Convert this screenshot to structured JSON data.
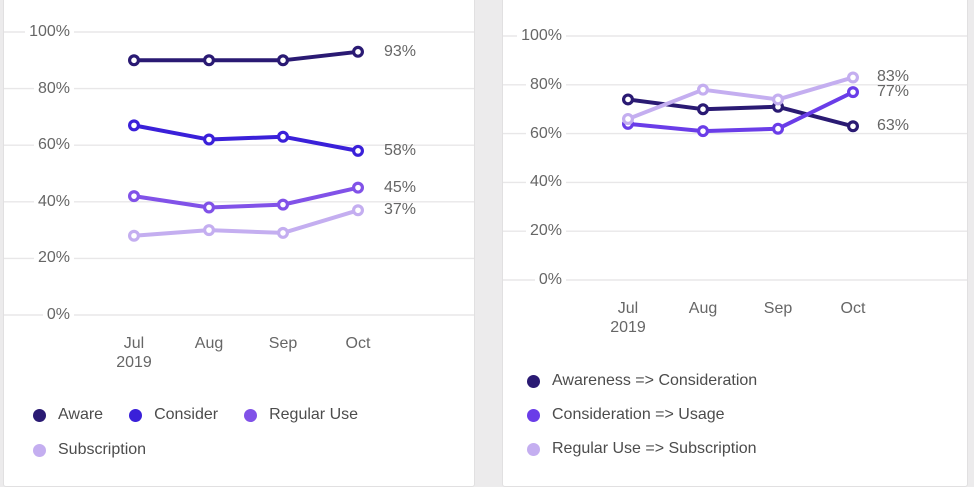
{
  "page": {
    "background_color": "#ecebec",
    "card_background": "#ffffff",
    "grid_color": "#e8e7e8",
    "tick_label_color": "#666666",
    "legend_label_color": "#4c4c4c"
  },
  "chart_data": [
    {
      "type": "line",
      "title": "",
      "categories": [
        "Jul",
        "Aug",
        "Sep",
        "Oct"
      ],
      "x_sublabel": "2019",
      "ylim": [
        0,
        100
      ],
      "y_ticks": [
        0,
        20,
        40,
        60,
        80,
        100
      ],
      "y_tick_suffix": "%",
      "grid": true,
      "legend_position": "bottom",
      "series": [
        {
          "name": "Aware",
          "color": "#2a1a73",
          "values": [
            90,
            90,
            90,
            93
          ],
          "end_label": "93%"
        },
        {
          "name": "Consider",
          "color": "#3a20d9",
          "values": [
            67,
            62,
            63,
            58
          ],
          "end_label": "58%"
        },
        {
          "name": "Regular Use",
          "color": "#8152e8",
          "values": [
            42,
            38,
            39,
            45
          ],
          "end_label": "45%"
        },
        {
          "name": "Subscription",
          "color": "#c4aef0",
          "values": [
            28,
            30,
            29,
            37
          ],
          "end_label": "37%"
        }
      ]
    },
    {
      "type": "line",
      "title": "",
      "categories": [
        "Jul",
        "Aug",
        "Sep",
        "Oct"
      ],
      "x_sublabel": "2019",
      "ylim": [
        0,
        100
      ],
      "y_ticks": [
        0,
        20,
        40,
        60,
        80,
        100
      ],
      "y_tick_suffix": "%",
      "grid": true,
      "legend_position": "bottom",
      "series": [
        {
          "name": "Awareness => Consideration",
          "color": "#2a1a73",
          "values": [
            74,
            70,
            71,
            63
          ],
          "end_label": "63%"
        },
        {
          "name": "Consideration => Usage",
          "color": "#6a3de8",
          "values": [
            64,
            61,
            62,
            77
          ],
          "end_label": "77%"
        },
        {
          "name": "Regular Use => Subscription",
          "color": "#c4aef0",
          "values": [
            66,
            78,
            74,
            83
          ],
          "end_label": "83%"
        }
      ]
    }
  ]
}
